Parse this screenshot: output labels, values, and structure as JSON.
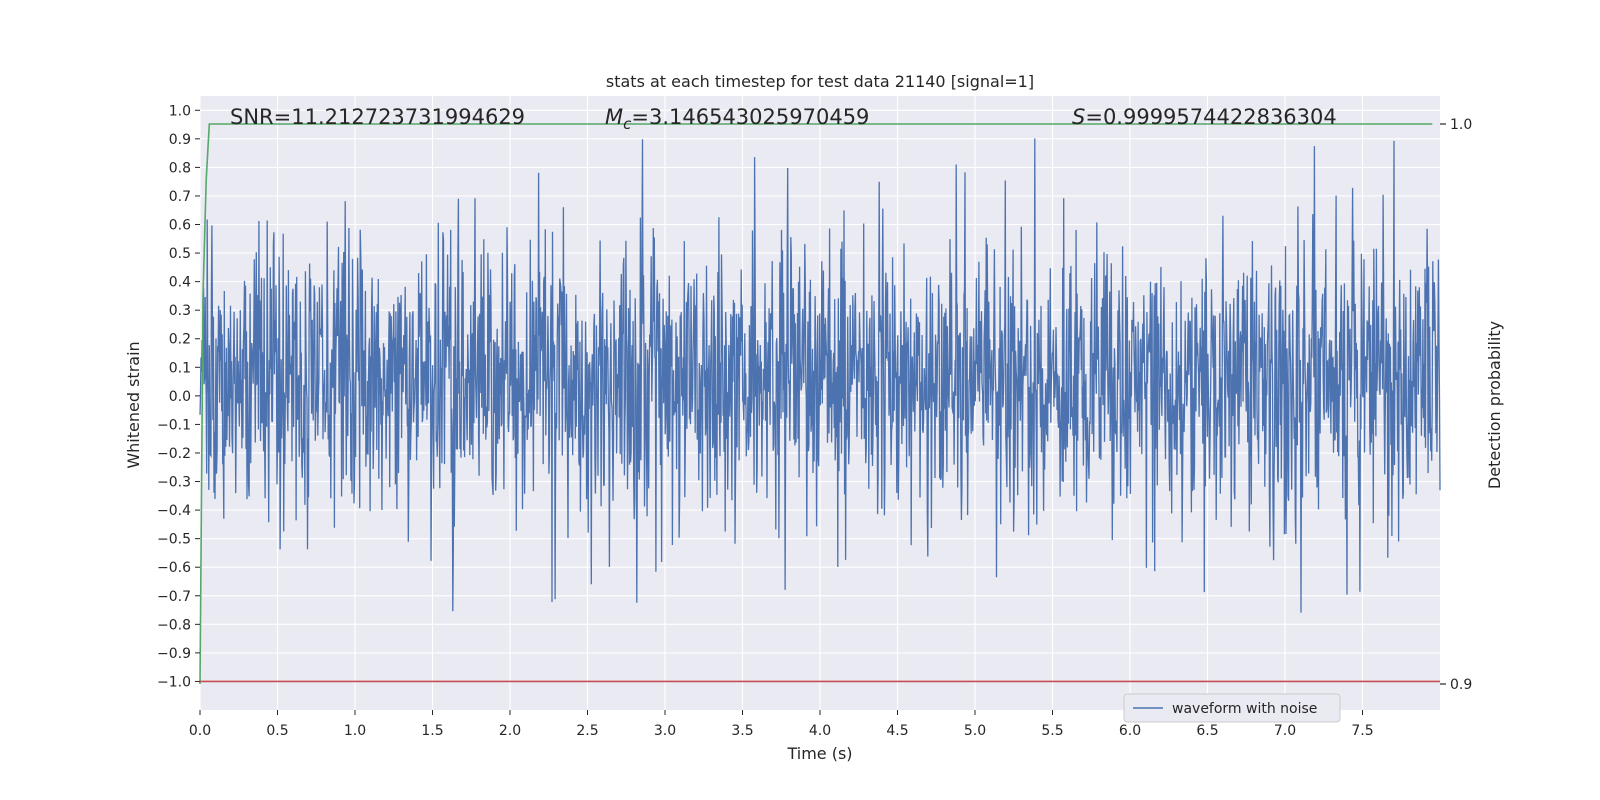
{
  "chart_data": {
    "type": "line",
    "title": "stats at each timestep for test data 21140 [signal=1]",
    "xlabel": "Time (s)",
    "ylabel": "Whitened strain",
    "y2label": "Detection probability",
    "xlim": [
      0.0,
      8.0
    ],
    "ylim": [
      -1.1,
      1.05
    ],
    "y2lim": [
      0.9,
      1.0
    ],
    "x_ticks": [
      "0.0",
      "0.5",
      "1.0",
      "1.5",
      "2.0",
      "2.5",
      "3.0",
      "3.5",
      "4.0",
      "4.5",
      "5.0",
      "5.5",
      "6.0",
      "6.5",
      "7.0",
      "7.5"
    ],
    "y_ticks": [
      "1.0",
      "0.9",
      "0.8",
      "0.7",
      "0.6",
      "0.5",
      "0.4",
      "0.3",
      "0.2",
      "0.1",
      "0.0",
      "-0.1",
      "-0.2",
      "-0.3",
      "-0.4",
      "-0.5",
      "-0.6",
      "-0.7",
      "-0.8",
      "-0.9",
      "-1.0"
    ],
    "y2_ticks": [
      "1.0",
      "0.9"
    ],
    "grid": true,
    "legend_position": "bottom-right",
    "annotations": {
      "snr": "SNR=11.212723731994629",
      "mc_symbol": "M",
      "mc_sub": "c",
      "mc_value": "=3.146543025970459",
      "s_symbol": "S",
      "s_value": "=0.9999574422836304"
    },
    "series": [
      {
        "name": "waveform with noise",
        "color": "#4c72b0",
        "axis": "left",
        "x_range": [
          0.0,
          8.0
        ],
        "amplitude_envelope": [
          -1.0,
          0.93
        ]
      },
      {
        "color": "#55a868",
        "axis": "right",
        "x": [
          0.0,
          0.02,
          0.04,
          0.06,
          7.95
        ],
        "y": [
          0.9,
          0.97,
          0.99,
          1.0,
          1.0
        ]
      },
      {
        "color": "#c44e52",
        "axis": "left",
        "x": [
          0.0,
          8.0
        ],
        "y": [
          -1.0,
          -1.0
        ]
      }
    ]
  }
}
